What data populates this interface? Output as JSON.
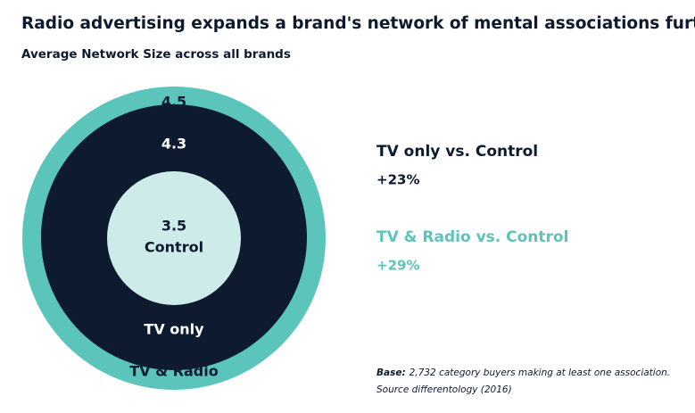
{
  "title": "Radio advertising expands a brand's network of mental associations further",
  "subtitle": "Average Network Size across all brands",
  "circles": [
    {
      "value": 4.5,
      "label": "TV & Radio"
    },
    {
      "value": 4.3,
      "label": "TV only"
    },
    {
      "value": 3.5,
      "label": "Control"
    }
  ],
  "comparisons": [
    {
      "label": "TV only vs. Control",
      "change": "+23%"
    },
    {
      "label": "TV & Radio vs. Control",
      "change": "+29%"
    }
  ],
  "footnote": {
    "base_label": "Base:",
    "base_text": "2,732 category buyers making at least one association.",
    "source": "Source differentology (2016)"
  }
}
